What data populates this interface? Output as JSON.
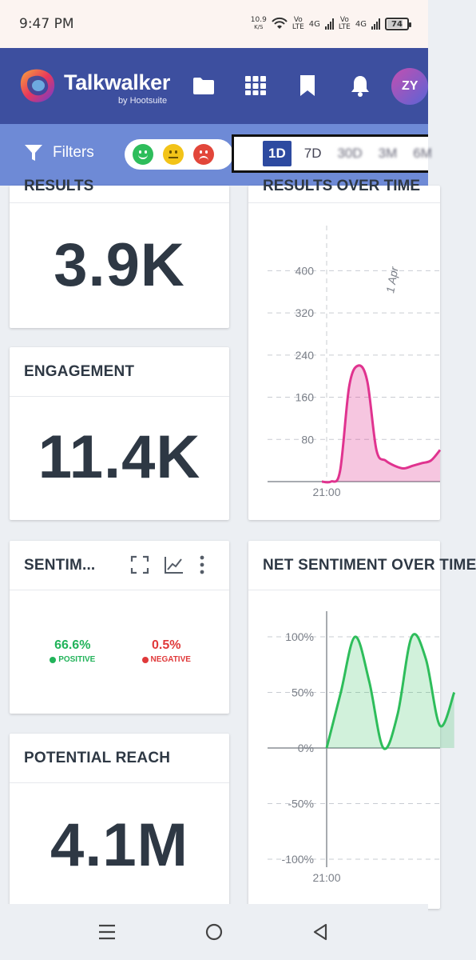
{
  "status_bar": {
    "time": "9:47 PM",
    "speed_value": "10.9",
    "speed_unit": "K/S",
    "sim1_label": "Vo\nLTE",
    "sim1_net": "4G",
    "sim2_label": "Vo\nLTE",
    "sim2_net": "4G",
    "battery": "74"
  },
  "header": {
    "brand_name": "Talkwalker",
    "brand_sub": "by Hootsuite",
    "avatar_initials": "ZY",
    "icons": [
      "folder-icon",
      "grid-icon",
      "bookmark-icon",
      "bell-icon"
    ],
    "bg_color": "#3d4f9f"
  },
  "filter_bar": {
    "filters_label": "Filters",
    "time_ranges": [
      "1D",
      "7D",
      "30D",
      "3M",
      "6M"
    ],
    "active_range": "1D"
  },
  "cards": {
    "results": {
      "title": "RESULTS",
      "value": "3.9K"
    },
    "engagement": {
      "title": "ENGAGEMENT",
      "value": "11.4K"
    },
    "sentiment": {
      "title": "SENTIM...",
      "positive_pct": "66.6%",
      "positive_label": "POSITIVE",
      "negative_pct": "0.5%",
      "negative_label": "NEGATIVE"
    },
    "reach": {
      "title": "POTENTIAL REACH",
      "value": "4.1M"
    },
    "results_over_time": {
      "title": "RESULTS OVER TIME",
      "date_marker": "1 Apr",
      "x_tick": "21:00"
    },
    "net_sentiment": {
      "title": "NET SENTIMENT OVER TIME",
      "x_tick": "21:00"
    }
  },
  "chart_data": [
    {
      "type": "area",
      "title": "RESULTS OVER TIME",
      "y_ticks": [
        "400",
        "320",
        "240",
        "160",
        "80"
      ],
      "ylim": [
        0,
        440
      ],
      "x_tick_labels": [
        "21:00"
      ],
      "series": [
        {
          "values": [
            0,
            0,
            20,
            180,
            220,
            190,
            60,
            40,
            30,
            25,
            30,
            35,
            40,
            60
          ]
        }
      ],
      "color": "#e0338f"
    },
    {
      "type": "area",
      "title": "NET SENTIMENT OVER TIME",
      "y_ticks": [
        "100%",
        "50%",
        "0%",
        "-50%",
        "-100%"
      ],
      "ylim": [
        -100,
        100
      ],
      "x_tick_labels": [
        "21:00"
      ],
      "series": [
        {
          "values": [
            0,
            50,
            100,
            60,
            0,
            30,
            100,
            80,
            20,
            50
          ]
        }
      ],
      "color": "#2ebd5b"
    }
  ],
  "nav_bar": {
    "icons": [
      "menu-icon",
      "home-icon",
      "back-icon"
    ]
  }
}
